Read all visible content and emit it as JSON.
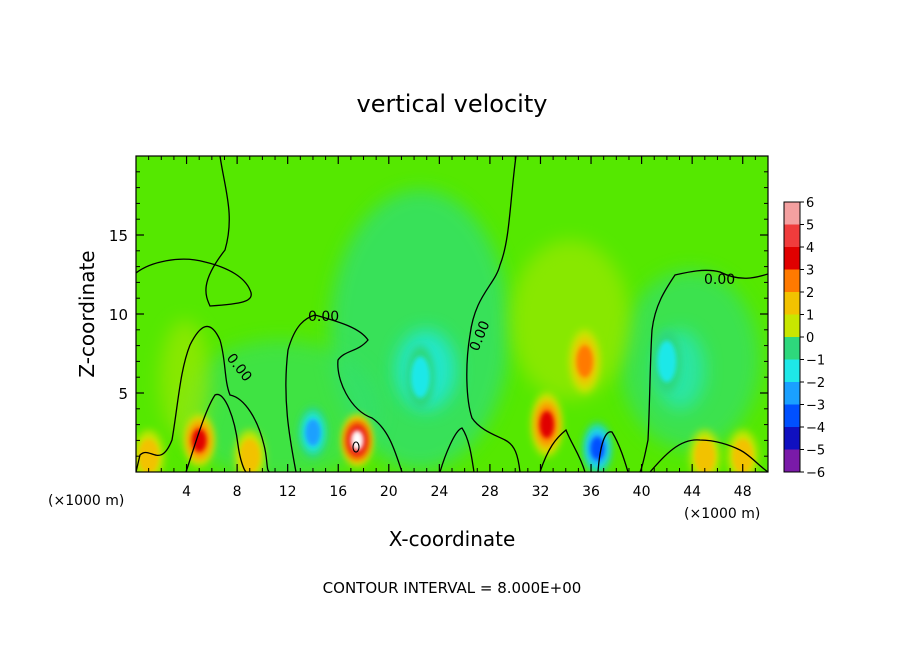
{
  "chart_data": {
    "type": "heatmap",
    "title": "vertical velocity",
    "xlabel": "X-coordinate",
    "ylabel": "Z-coordinate",
    "x_unit_left": "(×1000 m)",
    "x_unit_right": "(×1000 m)",
    "footer": "CONTOUR INTERVAL = 8.000E+00",
    "xlim": [
      0,
      50
    ],
    "ylim": [
      0,
      20
    ],
    "x_ticks": [
      4,
      8,
      12,
      16,
      20,
      24,
      28,
      32,
      36,
      40,
      44,
      48
    ],
    "y_ticks": [
      5,
      10,
      15
    ],
    "colorbar": {
      "levels": [
        6,
        5,
        4,
        3,
        2,
        1,
        0,
        -1,
        -2,
        -3,
        -4,
        -5,
        -6
      ],
      "labels": [
        "6",
        "5",
        "4",
        "3",
        "2",
        "1",
        "0",
        "−1",
        "−2",
        "−3",
        "−4",
        "−5",
        "−6"
      ],
      "colors": [
        "#f4a0a0",
        "#f03c3c",
        "#e00000",
        "#ff7a00",
        "#f2c200",
        "#c8e600",
        "#55e800",
        "#2ed87c",
        "#1ee8e8",
        "#1aa0ff",
        "#0050ff",
        "#1010c0",
        "#7a1aa8"
      ]
    },
    "contour_labels": [
      {
        "text": "0.00",
        "x": 7.5,
        "z": 6.5
      },
      {
        "text": "0.00",
        "x": 15.5,
        "z": 10.0
      },
      {
        "text": "0.00",
        "x": 27.0,
        "z": 8.5
      },
      {
        "text": "0.00",
        "x": 46.0,
        "z": 12.5
      }
    ],
    "features": [
      {
        "x": 5.0,
        "z": 2.0,
        "value": 4
      },
      {
        "x": 17.5,
        "z": 2.0,
        "value": 6
      },
      {
        "x": 32.5,
        "z": 3.0,
        "value": 4
      },
      {
        "x": 35.5,
        "z": 7.0,
        "value": 3
      },
      {
        "x": 36.5,
        "z": 1.5,
        "value": -4
      },
      {
        "x": 14.0,
        "z": 2.5,
        "value": -3
      },
      {
        "x": 22.5,
        "z": 6.0,
        "value": -2
      },
      {
        "x": 42.0,
        "z": 7.0,
        "value": -2
      },
      {
        "x": 1.0,
        "z": 1.0,
        "value": 2
      },
      {
        "x": 9.0,
        "z": 1.0,
        "value": 2
      },
      {
        "x": 45.0,
        "z": 1.0,
        "value": 2
      },
      {
        "x": 48.0,
        "z": 1.0,
        "value": 2
      }
    ]
  }
}
